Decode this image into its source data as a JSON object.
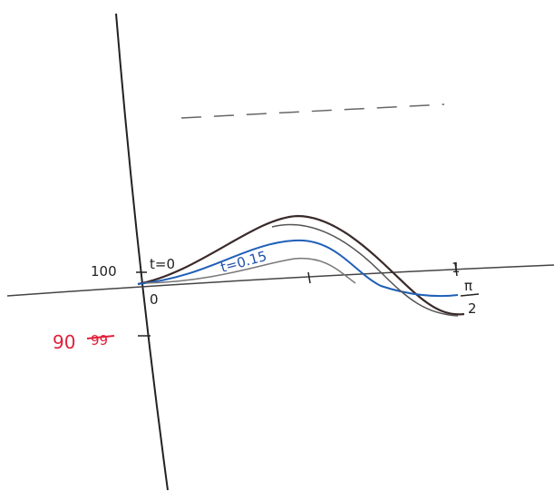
{
  "labels": {
    "y_mark": "100",
    "origin": "0",
    "curve_t0": "t=0",
    "curve_t015": "t=0.15",
    "x_mark": "1",
    "x_end_numerator": "π",
    "x_end_denominator": "2",
    "correction_new": "90",
    "correction_old": "99"
  }
}
